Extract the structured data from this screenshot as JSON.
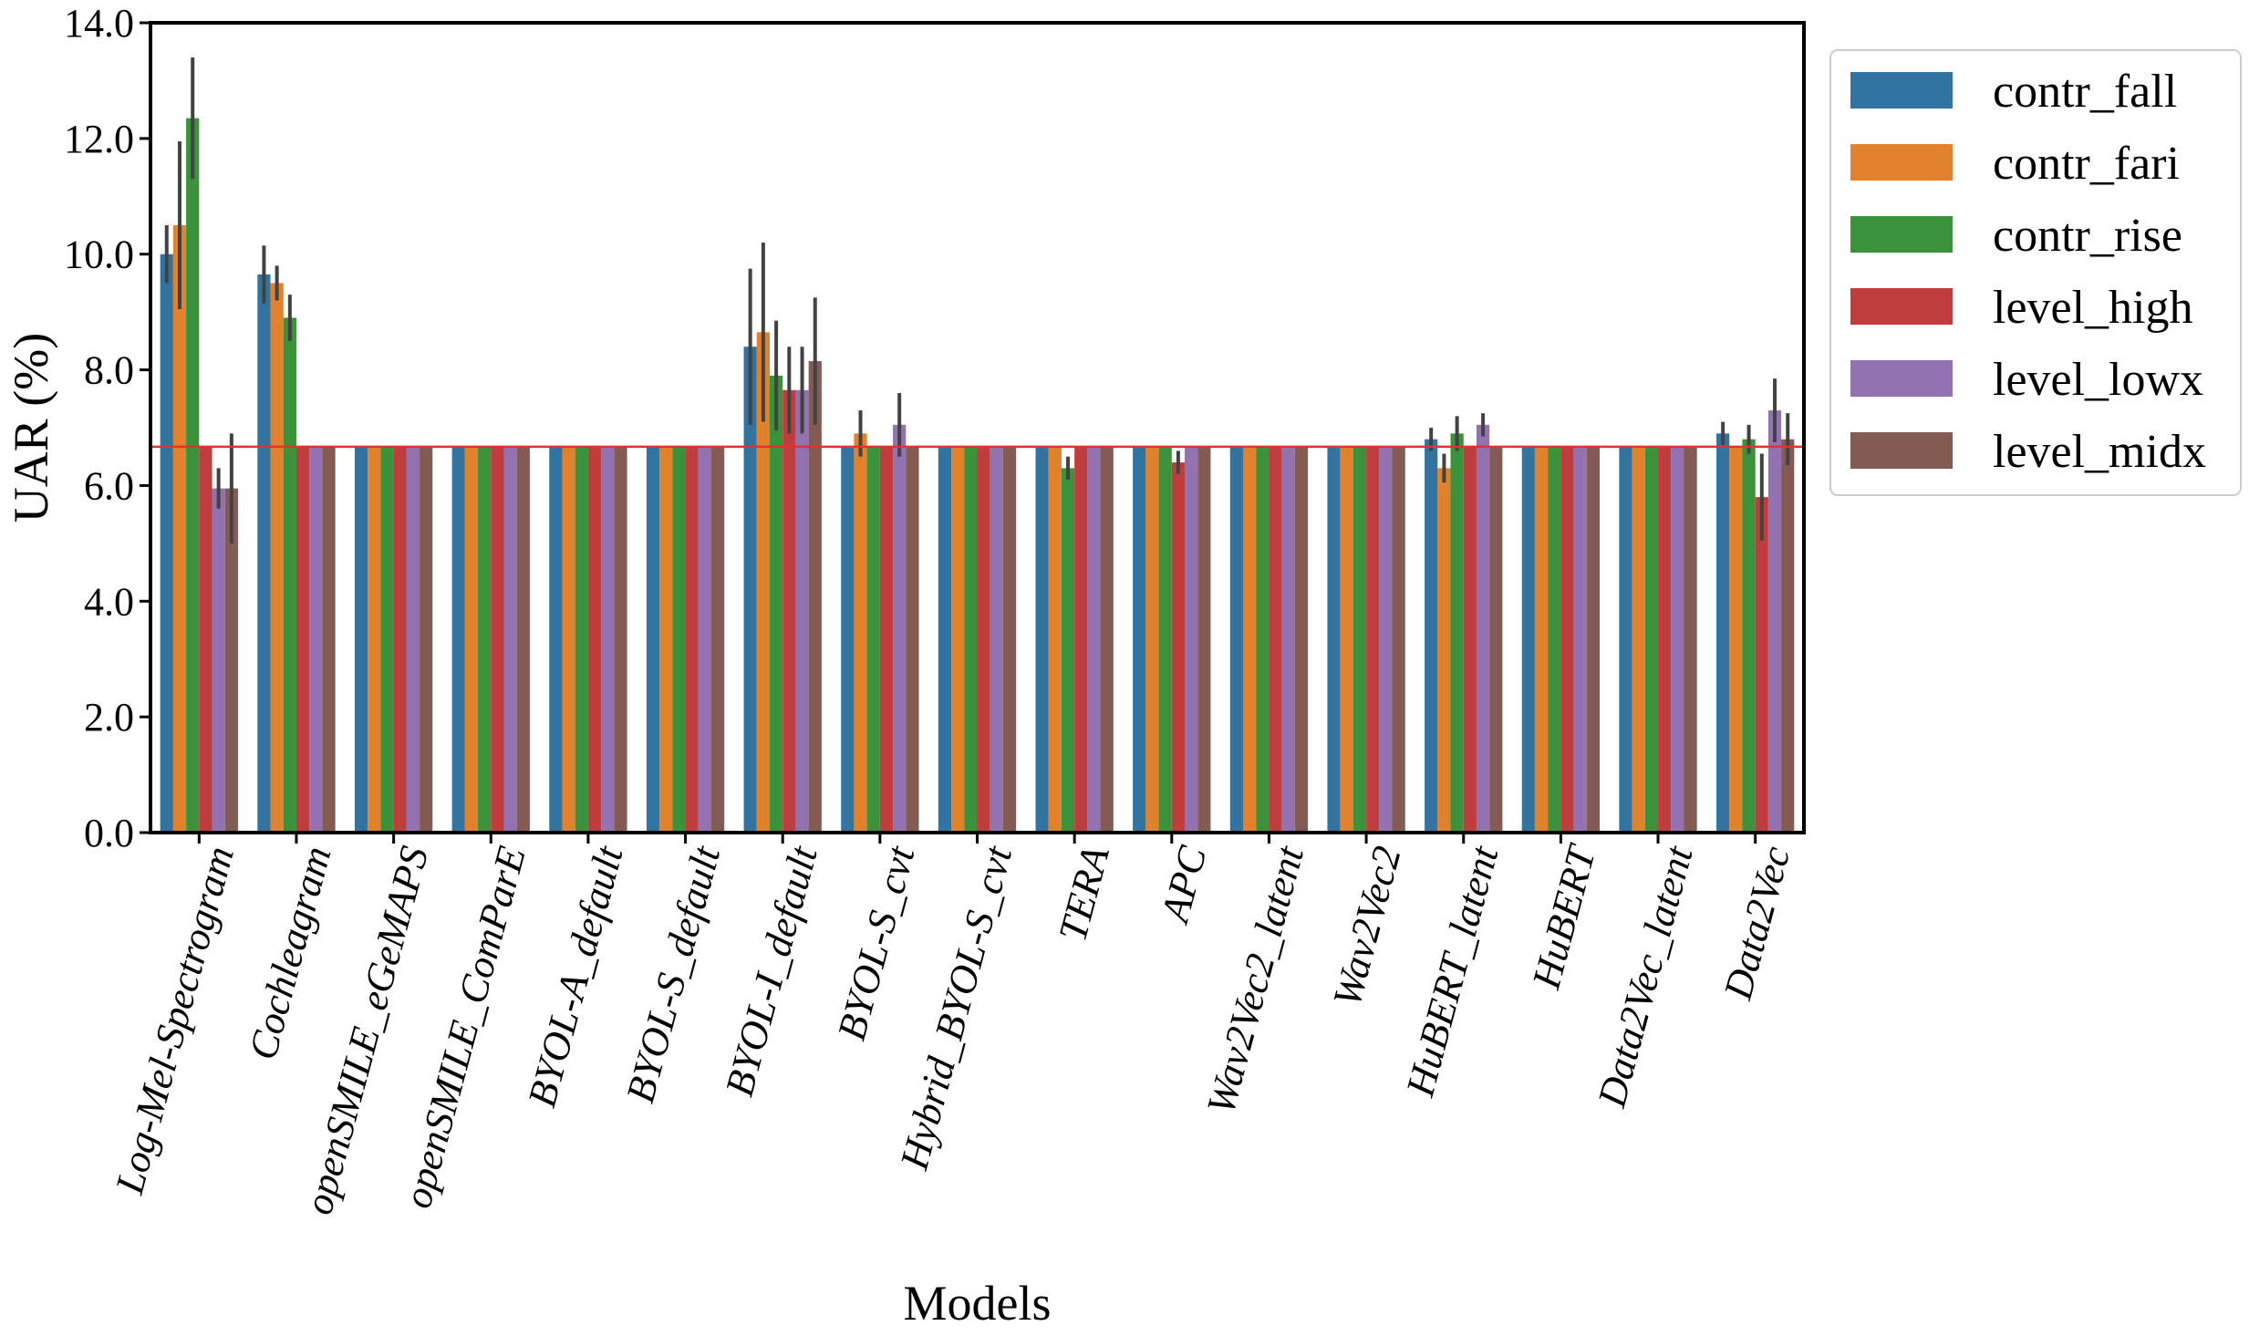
{
  "chart_data": {
    "type": "bar",
    "title": "",
    "xlabel": "Models",
    "ylabel": "UAR (%)",
    "ylim": [
      0,
      14
    ],
    "yticks": [
      "0.0",
      "2.0",
      "4.0",
      "6.0",
      "8.0",
      "10.0",
      "12.0",
      "14.0"
    ],
    "reference_line": 6.67,
    "reference_line_color": "#e8302a",
    "grid": false,
    "legend_position": "upper right, outside plot",
    "categories": [
      "Log-Mel-Spectrogram",
      "Cochleagram",
      "openSMILE_eGeMAPS",
      "openSMILE_ComParE",
      "BYOL-A_default",
      "BYOL-S_default",
      "BYOL-I_default",
      "BYOL-S_cvt",
      "Hybrid_BYOL-S_cvt",
      "TERA",
      "APC",
      "Wav2Vec2_latent",
      "Wav2Vec2",
      "HuBERT_latent",
      "HuBERT",
      "Data2Vec_latent",
      "Data2Vec"
    ],
    "series": [
      {
        "name": "contr_fall",
        "color": "#3274a1",
        "values": [
          10.0,
          9.65,
          6.67,
          6.67,
          6.67,
          6.67,
          8.4,
          6.67,
          6.67,
          6.67,
          6.67,
          6.67,
          6.67,
          6.8,
          6.67,
          6.67,
          6.9
        ],
        "errors": [
          0.5,
          0.5,
          0,
          0,
          0,
          0,
          1.35,
          0,
          0,
          0,
          0,
          0,
          0,
          0.2,
          0,
          0,
          0.2
        ]
      },
      {
        "name": "contr_fari",
        "color": "#e1812c",
        "values": [
          10.5,
          9.5,
          6.67,
          6.67,
          6.67,
          6.67,
          8.65,
          6.9,
          6.67,
          6.67,
          6.67,
          6.67,
          6.67,
          6.3,
          6.67,
          6.67,
          6.67
        ],
        "errors": [
          1.45,
          0.3,
          0,
          0,
          0,
          0,
          1.55,
          0.4,
          0,
          0,
          0,
          0,
          0,
          0.25,
          0,
          0,
          0
        ]
      },
      {
        "name": "contr_rise",
        "color": "#3a923a",
        "values": [
          12.35,
          8.9,
          6.67,
          6.67,
          6.67,
          6.67,
          7.9,
          6.67,
          6.67,
          6.3,
          6.67,
          6.67,
          6.67,
          6.9,
          6.67,
          6.67,
          6.8
        ],
        "errors": [
          1.05,
          0.4,
          0,
          0,
          0,
          0,
          0.95,
          0,
          0,
          0.2,
          0,
          0,
          0,
          0.3,
          0,
          0,
          0.25
        ]
      },
      {
        "name": "level_high",
        "color": "#c03d3e",
        "values": [
          6.67,
          6.67,
          6.67,
          6.67,
          6.67,
          6.67,
          7.65,
          6.67,
          6.67,
          6.67,
          6.4,
          6.67,
          6.67,
          6.67,
          6.67,
          6.67,
          5.8
        ],
        "errors": [
          0,
          0,
          0,
          0,
          0,
          0,
          0.75,
          0,
          0,
          0,
          0.2,
          0,
          0,
          0,
          0,
          0,
          0.75
        ]
      },
      {
        "name": "level_lowx",
        "color": "#9372b2",
        "values": [
          5.95,
          6.67,
          6.67,
          6.67,
          6.67,
          6.67,
          7.65,
          7.05,
          6.67,
          6.67,
          6.67,
          6.67,
          6.67,
          7.05,
          6.67,
          6.67,
          7.3
        ],
        "errors": [
          0.35,
          0,
          0,
          0,
          0,
          0,
          0.75,
          0.55,
          0,
          0,
          0,
          0,
          0,
          0.2,
          0,
          0,
          0.55
        ]
      },
      {
        "name": "level_midx",
        "color": "#845b53",
        "values": [
          5.95,
          6.67,
          6.67,
          6.67,
          6.67,
          6.67,
          8.15,
          6.67,
          6.67,
          6.67,
          6.67,
          6.67,
          6.67,
          6.67,
          6.67,
          6.67,
          6.8
        ],
        "errors": [
          0.95,
          0,
          0,
          0,
          0,
          0,
          1.1,
          0,
          0,
          0,
          0,
          0,
          0,
          0,
          0,
          0,
          0.45
        ]
      }
    ]
  }
}
